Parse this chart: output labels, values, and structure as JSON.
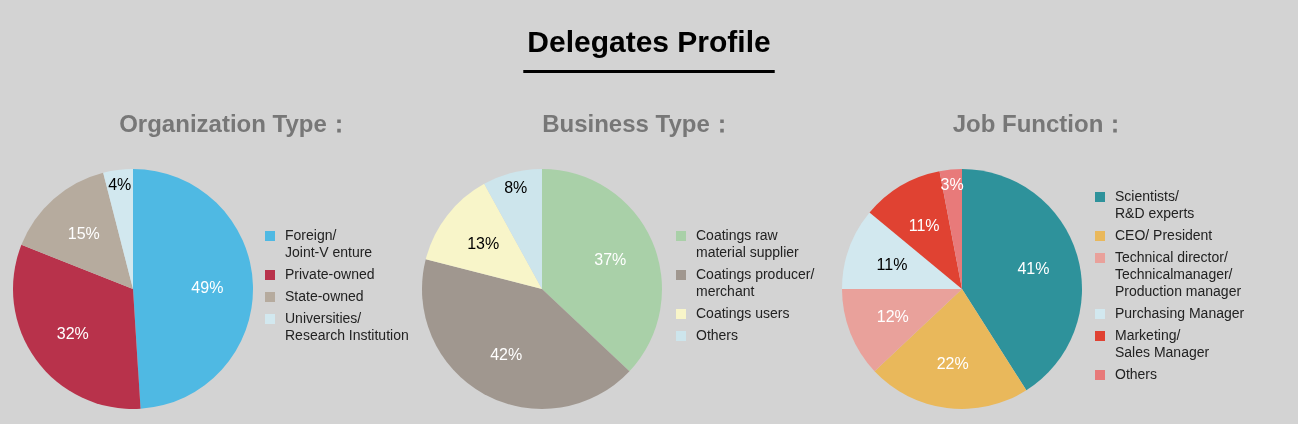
{
  "chart_data": [
    {
      "type": "pie",
      "title": "Organization Type：",
      "annotations": [
        "Delegates Profile"
      ],
      "categories": [
        "Foreign/\nJoint-V enture",
        "Private-owned",
        "State-owned",
        "Universities/\nResearch Institution"
      ],
      "values": [
        49,
        32,
        15,
        4
      ],
      "value_labels": [
        "49%",
        "32%",
        "15%",
        "4%"
      ],
      "colors": [
        "#4fb9e3",
        "#b8324b",
        "#b6ab9e",
        "#d2e8ef"
      ],
      "legend": "right"
    },
    {
      "type": "pie",
      "title": "Business Type：",
      "categories": [
        "Coatings raw\nmaterial supplier",
        "Coatings producer/\nmerchant",
        "Coatings users",
        "Others"
      ],
      "values": [
        37,
        42,
        13,
        8
      ],
      "value_labels": [
        "37%",
        "42%",
        "13%",
        "8%"
      ],
      "colors": [
        "#a9d0a8",
        "#a0978f",
        "#f8f5c9",
        "#cde5ec"
      ],
      "legend": "right"
    },
    {
      "type": "pie",
      "title": "Job Function：",
      "categories": [
        "Scientists/\nR&D experts",
        "CEO/ President",
        "Technical director/\nTechnicalmanager/\nProduction manager",
        "Purchasing Manager",
        "Marketing/\nSales Manager",
        "Others"
      ],
      "values": [
        41,
        22,
        12,
        11,
        11,
        3
      ],
      "value_labels": [
        "41%",
        "22%",
        "12%",
        "11%",
        "11%",
        "3%"
      ],
      "colors": [
        "#2e929b",
        "#e9b85b",
        "#e9a19b",
        "#d2e8ef",
        "#e04232",
        "#e87a7a"
      ],
      "legend": "right"
    }
  ]
}
